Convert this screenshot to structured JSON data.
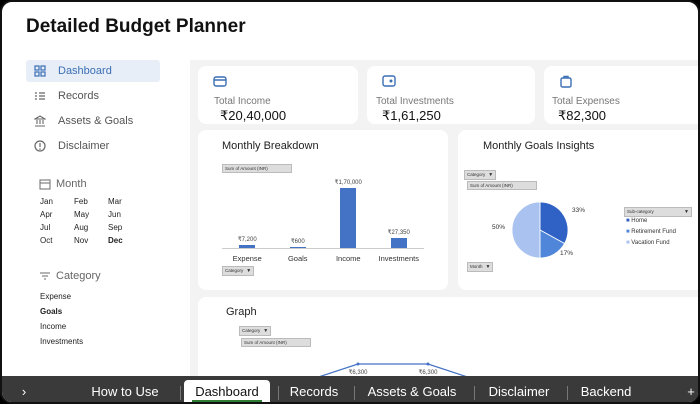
{
  "app": {
    "title": "Detailed Budget Planner"
  },
  "sidebar": {
    "nav": [
      {
        "label": "Dashboard",
        "icon": "grid-icon"
      },
      {
        "label": "Records",
        "icon": "list-icon"
      },
      {
        "label": "Assets & Goals",
        "icon": "bank-icon"
      },
      {
        "label": "Disclaimer",
        "icon": "info-icon"
      }
    ],
    "month_heading": "Month",
    "months": [
      "Jan",
      "Feb",
      "Mar",
      "Apr",
      "May",
      "Jun",
      "Jul",
      "Aug",
      "Sep",
      "Oct",
      "Nov",
      "Dec"
    ],
    "category_heading": "Category",
    "categories": [
      "Expense",
      "Goals",
      "Income",
      "Investments"
    ]
  },
  "kpis": [
    {
      "label": "Total Income",
      "value": "₹20,40,000",
      "icon": "wallet-icon"
    },
    {
      "label": "Total Investments",
      "value": "₹1,61,250",
      "icon": "cash-icon"
    },
    {
      "label": "Total Expenses",
      "value": "₹82,300",
      "icon": "bag-icon"
    }
  ],
  "filters": {
    "sum_of_amount": "Sum of Amount (INR)",
    "category": "Category",
    "month": "Month",
    "sub_category": "Sub-category"
  },
  "chart_data": [
    {
      "type": "bar",
      "title": "Monthly Breakdown",
      "categories": [
        "Expense",
        "Goals",
        "Income",
        "Investments"
      ],
      "values": [
        7200,
        600,
        170000,
        27350
      ],
      "data_labels": [
        "₹7,200",
        "₹600",
        "₹1,70,000",
        "₹27,350"
      ],
      "colors": {
        "bar": "#4472c4"
      }
    },
    {
      "type": "pie",
      "title": "Monthly Goals Insights",
      "categories": [
        "Home",
        "Retirement Fund",
        "Vacation Fund"
      ],
      "values": [
        33,
        17,
        50
      ],
      "data_labels": [
        "33%",
        "17%",
        "50%"
      ],
      "colors": [
        "#2f62c4",
        "#4f86d9",
        "#a9c2f0"
      ]
    },
    {
      "type": "line",
      "title": "Graph",
      "visible_labels": [
        "₹6,300",
        "₹6,300"
      ],
      "colors": {
        "line": "#4472c4"
      }
    }
  ],
  "sheet_tabs": {
    "items": [
      "How to Use",
      "Dashboard",
      "Records",
      "Assets & Goals",
      "Disclaimer",
      "Backend"
    ],
    "active": "Dashboard",
    "nav_arrow": "›",
    "add": "+"
  }
}
